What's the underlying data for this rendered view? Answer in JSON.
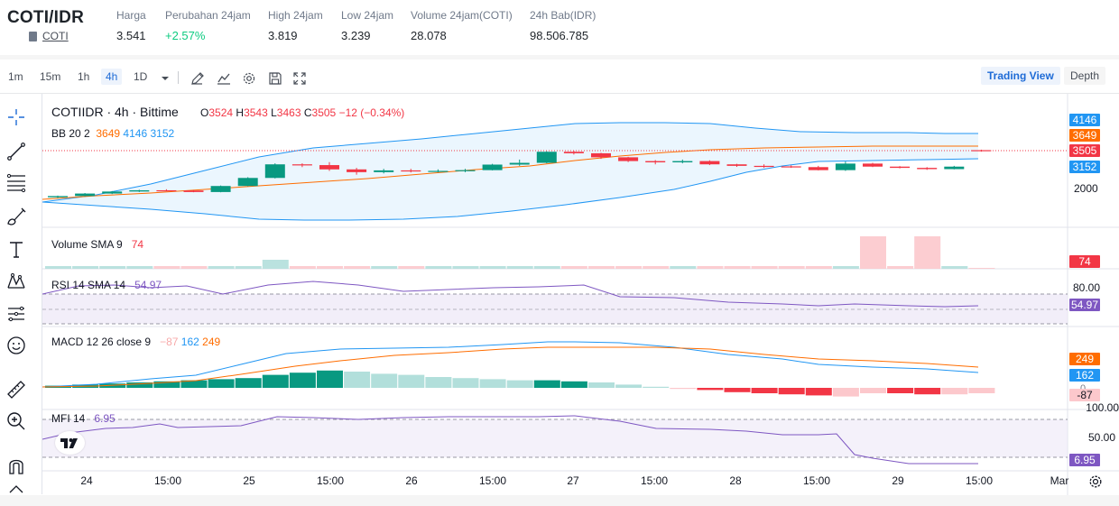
{
  "header": {
    "pair": "COTI/IDR",
    "coin_link": "COTI",
    "stats": [
      {
        "label": "Harga",
        "value": "3.541"
      },
      {
        "label": "Perubahan 24jam",
        "value": "+2.57%"
      },
      {
        "label": "High 24jam",
        "value": "3.819"
      },
      {
        "label": "Low 24jam",
        "value": "3.239"
      },
      {
        "label": "Volume 24jam(COTI)",
        "value": "28.078"
      },
      {
        "label": "24h Bab(IDR)",
        "value": "98.506.785"
      }
    ]
  },
  "toolbar": {
    "timeframes": [
      "1m",
      "15m",
      "1h",
      "4h",
      "1D"
    ],
    "active_timeframe": "4h",
    "icons": [
      "chevron-down-icon",
      "draw-icon",
      "indicator-icon",
      "settings-icon",
      "save-icon",
      "fullscreen-icon"
    ],
    "views": [
      "Trading View",
      "Depth"
    ],
    "active_view": "Trading View"
  },
  "left_tools": [
    "crosshair-icon",
    "trendline-icon",
    "fib-icon",
    "brush-icon",
    "text-icon",
    "pattern-icon",
    "forecast-icon",
    "emoji-icon",
    "ruler-icon",
    "zoom-in-icon",
    "magnet-icon"
  ],
  "chart": {
    "title": "COTIIDR · 4h · Bittime",
    "ohlc": {
      "o_label": "O",
      "o": "3524",
      "h_label": "H",
      "h": "3543",
      "l_label": "L",
      "l": "3463",
      "c_label": "C",
      "c": "3505",
      "chg": "−12 (−0.34%)"
    },
    "bb_legend": {
      "name": "BB 20 2",
      "basis": "3649",
      "upper": "4146",
      "lower": "3152"
    },
    "volume_legend": {
      "name": "Volume SMA 9",
      "value": "74"
    },
    "rsi_legend": {
      "name": "RSI 14 SMA 14",
      "value": "54.97"
    },
    "macd_legend": {
      "name": "MACD 12 26 close 9",
      "hist": "−87",
      "macd": "162",
      "signal": "249"
    },
    "mfi_legend": {
      "name": "MFI 14",
      "value": "6.95"
    },
    "price_axis": {
      "labels": [
        "2000"
      ],
      "badges": [
        "4146",
        "3649",
        "3505",
        "3152"
      ]
    },
    "volume_axis": {
      "badge": "74"
    },
    "rsi_axis": {
      "labels": [
        "80.00"
      ],
      "badge": "54.97"
    },
    "macd_axis": {
      "badges": [
        "249",
        "162",
        "0",
        "-87"
      ]
    },
    "mfi_axis": {
      "labels": [
        "100.00",
        "50.00"
      ],
      "badge": "6.95"
    },
    "x_axis": [
      "24",
      "15:00",
      "25",
      "15:00",
      "26",
      "15:00",
      "27",
      "15:00",
      "28",
      "15:00",
      "29",
      "15:00",
      "Mar"
    ],
    "colors": {
      "up": "#089981",
      "down": "#f23645",
      "bb_band": "#2196f3",
      "bb_basis": "#ff6d00",
      "rsi": "#7e57c2",
      "macd": "#2196f3",
      "signal": "#ff6d00"
    }
  },
  "chart_data": {
    "type": "candlestick",
    "candles_approx": [
      [
        1650,
        1720,
        1620,
        1700
      ],
      [
        1700,
        1820,
        1690,
        1800
      ],
      [
        1800,
        1900,
        1780,
        1880
      ],
      [
        1880,
        1950,
        1860,
        1930
      ],
      [
        1930,
        1970,
        1890,
        1920
      ],
      [
        1920,
        1940,
        1850,
        1860
      ],
      [
        1860,
        2120,
        1850,
        2100
      ],
      [
        2100,
        2450,
        2090,
        2420
      ],
      [
        2420,
        3000,
        2400,
        2960
      ],
      [
        2960,
        3000,
        2850,
        2930
      ],
      [
        2930,
        3050,
        2700,
        2760
      ],
      [
        2760,
        2820,
        2550,
        2650
      ],
      [
        2650,
        2780,
        2600,
        2720
      ],
      [
        2720,
        2780,
        2640,
        2690
      ],
      [
        2690,
        2760,
        2640,
        2700
      ],
      [
        2700,
        2780,
        2650,
        2730
      ],
      [
        2730,
        2980,
        2720,
        2950
      ],
      [
        2950,
        3150,
        2900,
        3020
      ],
      [
        3020,
        3480,
        3000,
        3460
      ],
      [
        3460,
        3500,
        3350,
        3400
      ],
      [
        3400,
        3420,
        3180,
        3240
      ],
      [
        3240,
        3260,
        3050,
        3090
      ],
      [
        3090,
        3130,
        2960,
        3040
      ],
      [
        3040,
        3150,
        3000,
        3090
      ],
      [
        3090,
        3120,
        2930,
        2960
      ],
      [
        2960,
        2980,
        2860,
        2900
      ],
      [
        2900,
        2960,
        2820,
        2880
      ],
      [
        2880,
        2920,
        2820,
        2850
      ],
      [
        2850,
        2900,
        2720,
        2730
      ],
      [
        2730,
        3070,
        2700,
        2990
      ],
      [
        2990,
        3020,
        2850,
        2870
      ],
      [
        2870,
        2890,
        2800,
        2820
      ],
      [
        2820,
        2850,
        2740,
        2770
      ],
      [
        2770,
        2900,
        2760,
        2870
      ],
      [
        3524,
        3543,
        3463,
        3505
      ]
    ]
  }
}
